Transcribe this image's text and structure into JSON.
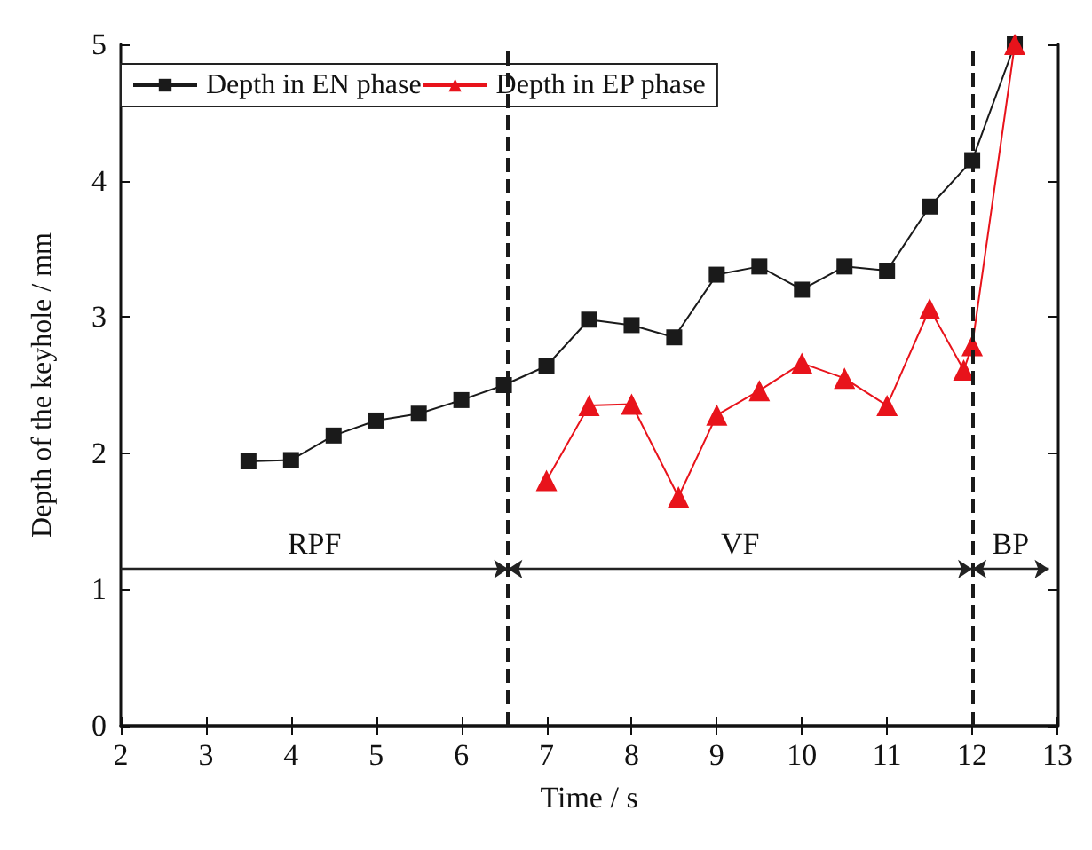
{
  "chart_data": {
    "type": "line",
    "xlabel": "Time / s",
    "ylabel": "Depth of the keyhole / mm",
    "xlim": [
      2,
      13
    ],
    "xticks": [
      2,
      3,
      4,
      5,
      6,
      7,
      8,
      9,
      10,
      11,
      12,
      13
    ],
    "ylim": [
      0,
      5
    ],
    "yticks": [
      0,
      1,
      2,
      3,
      4,
      5
    ],
    "grid": false,
    "legend": "top left",
    "line_style": "solid",
    "series": [
      {
        "name": "Depth in EN phase",
        "color": "#1a1a1a",
        "marker": "square",
        "x": [
          3.5,
          4,
          4.5,
          5,
          5.5,
          6,
          6.5,
          7,
          7.5,
          8,
          8.5,
          9,
          9.5,
          10,
          10.5,
          11,
          11.5,
          12,
          12.5
        ],
        "values": [
          1.94,
          1.95,
          2.13,
          2.24,
          2.29,
          2.39,
          2.5,
          2.64,
          2.98,
          2.94,
          2.85,
          3.31,
          3.37,
          3.2,
          3.37,
          3.34,
          3.81,
          4.15,
          5.0
        ]
      },
      {
        "name": "Depth in EP phase",
        "color": "#e8131b",
        "marker": "triangle",
        "x": [
          7,
          7.5,
          8,
          8.55,
          9,
          9.5,
          10,
          10.5,
          11,
          11.5,
          11.9,
          12,
          12.5
        ],
        "values": [
          1.8,
          2.35,
          2.36,
          1.68,
          2.28,
          2.46,
          2.66,
          2.55,
          2.35,
          3.06,
          2.61,
          2.79,
          5.0
        ]
      }
    ],
    "ref_lines": [
      {
        "axis": "x",
        "value": 6.55,
        "line_style": "dashed",
        "color": "#1a1a1a"
      },
      {
        "axis": "x",
        "value": 12,
        "line_style": "dashed",
        "color": "#1a1a1a"
      }
    ],
    "annotations": [
      "RPF",
      "VF",
      "BP"
    ]
  }
}
